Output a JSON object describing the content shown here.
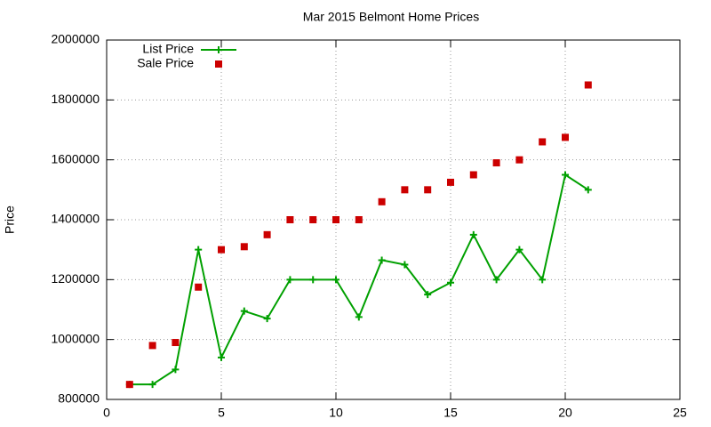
{
  "chart_data": {
    "type": "line",
    "title": "Mar 2015 Belmont Home Prices",
    "y_label": "Price",
    "x": [
      1,
      2,
      3,
      4,
      5,
      6,
      7,
      8,
      9,
      10,
      11,
      12,
      13,
      14,
      15,
      16,
      17,
      18,
      19,
      20,
      21
    ],
    "series": [
      {
        "name": "List Price",
        "color": "#00a000",
        "style": "line-points",
        "values": [
          850000,
          850000,
          900000,
          1300000,
          940000,
          1095000,
          1070000,
          1200000,
          1200000,
          1200000,
          1075000,
          1265000,
          1250000,
          1150000,
          1190000,
          1350000,
          1200000,
          1300000,
          1200000,
          1550000,
          1500000
        ]
      },
      {
        "name": "Sale Price",
        "color": "#cc0000",
        "style": "points",
        "values": [
          850000,
          980000,
          990000,
          1175000,
          1300000,
          1310000,
          1350000,
          1400000,
          1400000,
          1400000,
          1400000,
          1460000,
          1500000,
          1500000,
          1525000,
          1550000,
          1590000,
          1600000,
          1660000,
          1675000,
          1850000
        ]
      }
    ],
    "xlim": [
      0,
      25
    ],
    "xticks": [
      0,
      5,
      10,
      15,
      20,
      25
    ],
    "ylim": [
      800000,
      2000000
    ],
    "yticks": [
      800000,
      1000000,
      1200000,
      1400000,
      1600000,
      1800000,
      2000000
    ],
    "grid": true,
    "legend": "top-left"
  }
}
